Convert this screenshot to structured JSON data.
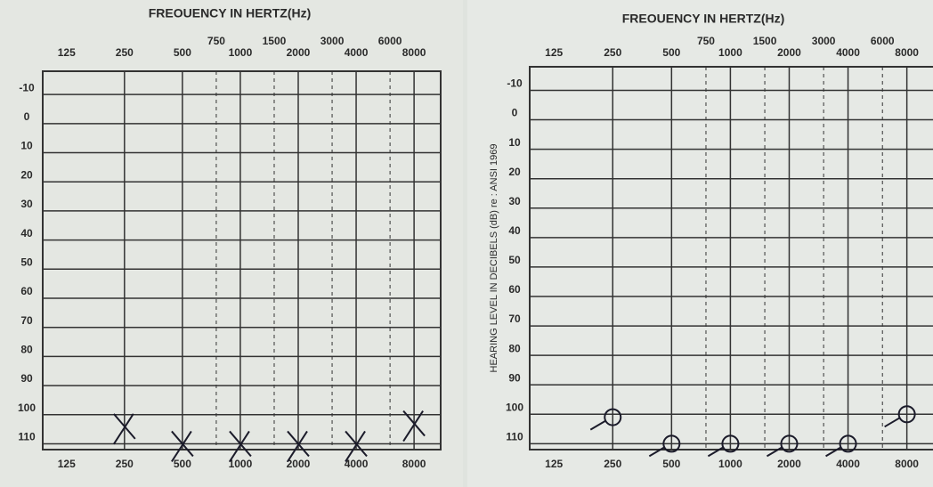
{
  "chart_data": [
    {
      "type": "audiogram",
      "title": "FREOUENCY IN HERTZ(Hz)",
      "x": [
        250,
        500,
        1000,
        2000,
        4000,
        8000
      ],
      "series": [
        {
          "color": "#1b1b2a",
          "marker": "x",
          "values": [
            104,
            110,
            110,
            110,
            110,
            103
          ]
        }
      ],
      "xlim": [
        94,
        11000
      ],
      "log_x": true,
      "x2ticks": [
        125,
        250,
        500,
        750,
        1000,
        1500,
        2000,
        3000,
        4000,
        6000,
        8000
      ],
      "xticks": [
        125,
        250,
        500,
        1000,
        2000,
        4000,
        8000
      ],
      "ylim": [
        -18,
        112
      ],
      "invert_y": true,
      "yticks": [
        -10,
        0,
        10,
        20,
        30,
        40,
        50,
        60,
        70,
        80,
        90,
        100,
        110
      ],
      "grid": true
    },
    {
      "type": "audiogram",
      "title": "FREOUENCY IN HERTZ(Hz)",
      "ylabel": "HEARING LEVEL IN DECIBELS (dB) re : ANSI 1969",
      "x": [
        250,
        500,
        1000,
        2000,
        4000,
        8000
      ],
      "series": [
        {
          "color": "#1b1b2a",
          "marker": "o",
          "values": [
            101,
            110,
            110,
            110,
            110,
            100
          ]
        }
      ],
      "xlim": [
        94,
        11000
      ],
      "log_x": true,
      "x2ticks": [
        125,
        250,
        500,
        750,
        1000,
        1500,
        2000,
        3000,
        4000,
        6000,
        8000
      ],
      "xticks": [
        125,
        250,
        500,
        1000,
        2000,
        4000,
        8000
      ],
      "ylim": [
        -18,
        112
      ],
      "invert_y": true,
      "yticks": [
        -10,
        0,
        10,
        20,
        30,
        40,
        50,
        60,
        70,
        80,
        90,
        100,
        110
      ],
      "grid": true
    }
  ]
}
